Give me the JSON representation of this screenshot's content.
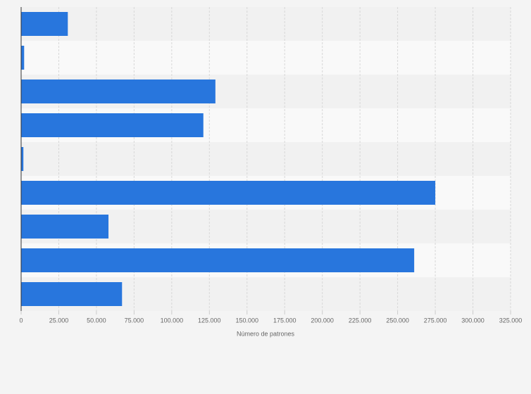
{
  "chart_data": {
    "type": "hbar",
    "categories": [
      null,
      null,
      null,
      null,
      null,
      null,
      null,
      null,
      null
    ],
    "values": [
      31000,
      2000,
      129000,
      121000,
      1500,
      275000,
      58000,
      261000,
      67000
    ],
    "color": "#2876dd",
    "xlabel": "Número de patrones",
    "xlim": [
      0,
      325000
    ],
    "xticks": [
      0,
      {
        "value": 25000,
        "label": "25.000"
      },
      {
        "value": 50000,
        "label": "50.000"
      },
      {
        "value": 75000,
        "label": "75.000"
      },
      {
        "value": 100000,
        "label": "100.000"
      },
      {
        "value": 125000,
        "label": "125.000"
      },
      {
        "value": 150000,
        "label": "150.000"
      },
      {
        "value": 175000,
        "label": "175.000"
      },
      {
        "value": 200000,
        "label": "200.000"
      },
      {
        "value": 225000,
        "label": "225.000"
      },
      {
        "value": 250000,
        "label": "250.000"
      },
      {
        "value": 275000,
        "label": "275.000"
      },
      {
        "value": 300000,
        "label": "300.000"
      },
      {
        "value": 325000,
        "label": "325.000"
      }
    ],
    "grid": true
  }
}
